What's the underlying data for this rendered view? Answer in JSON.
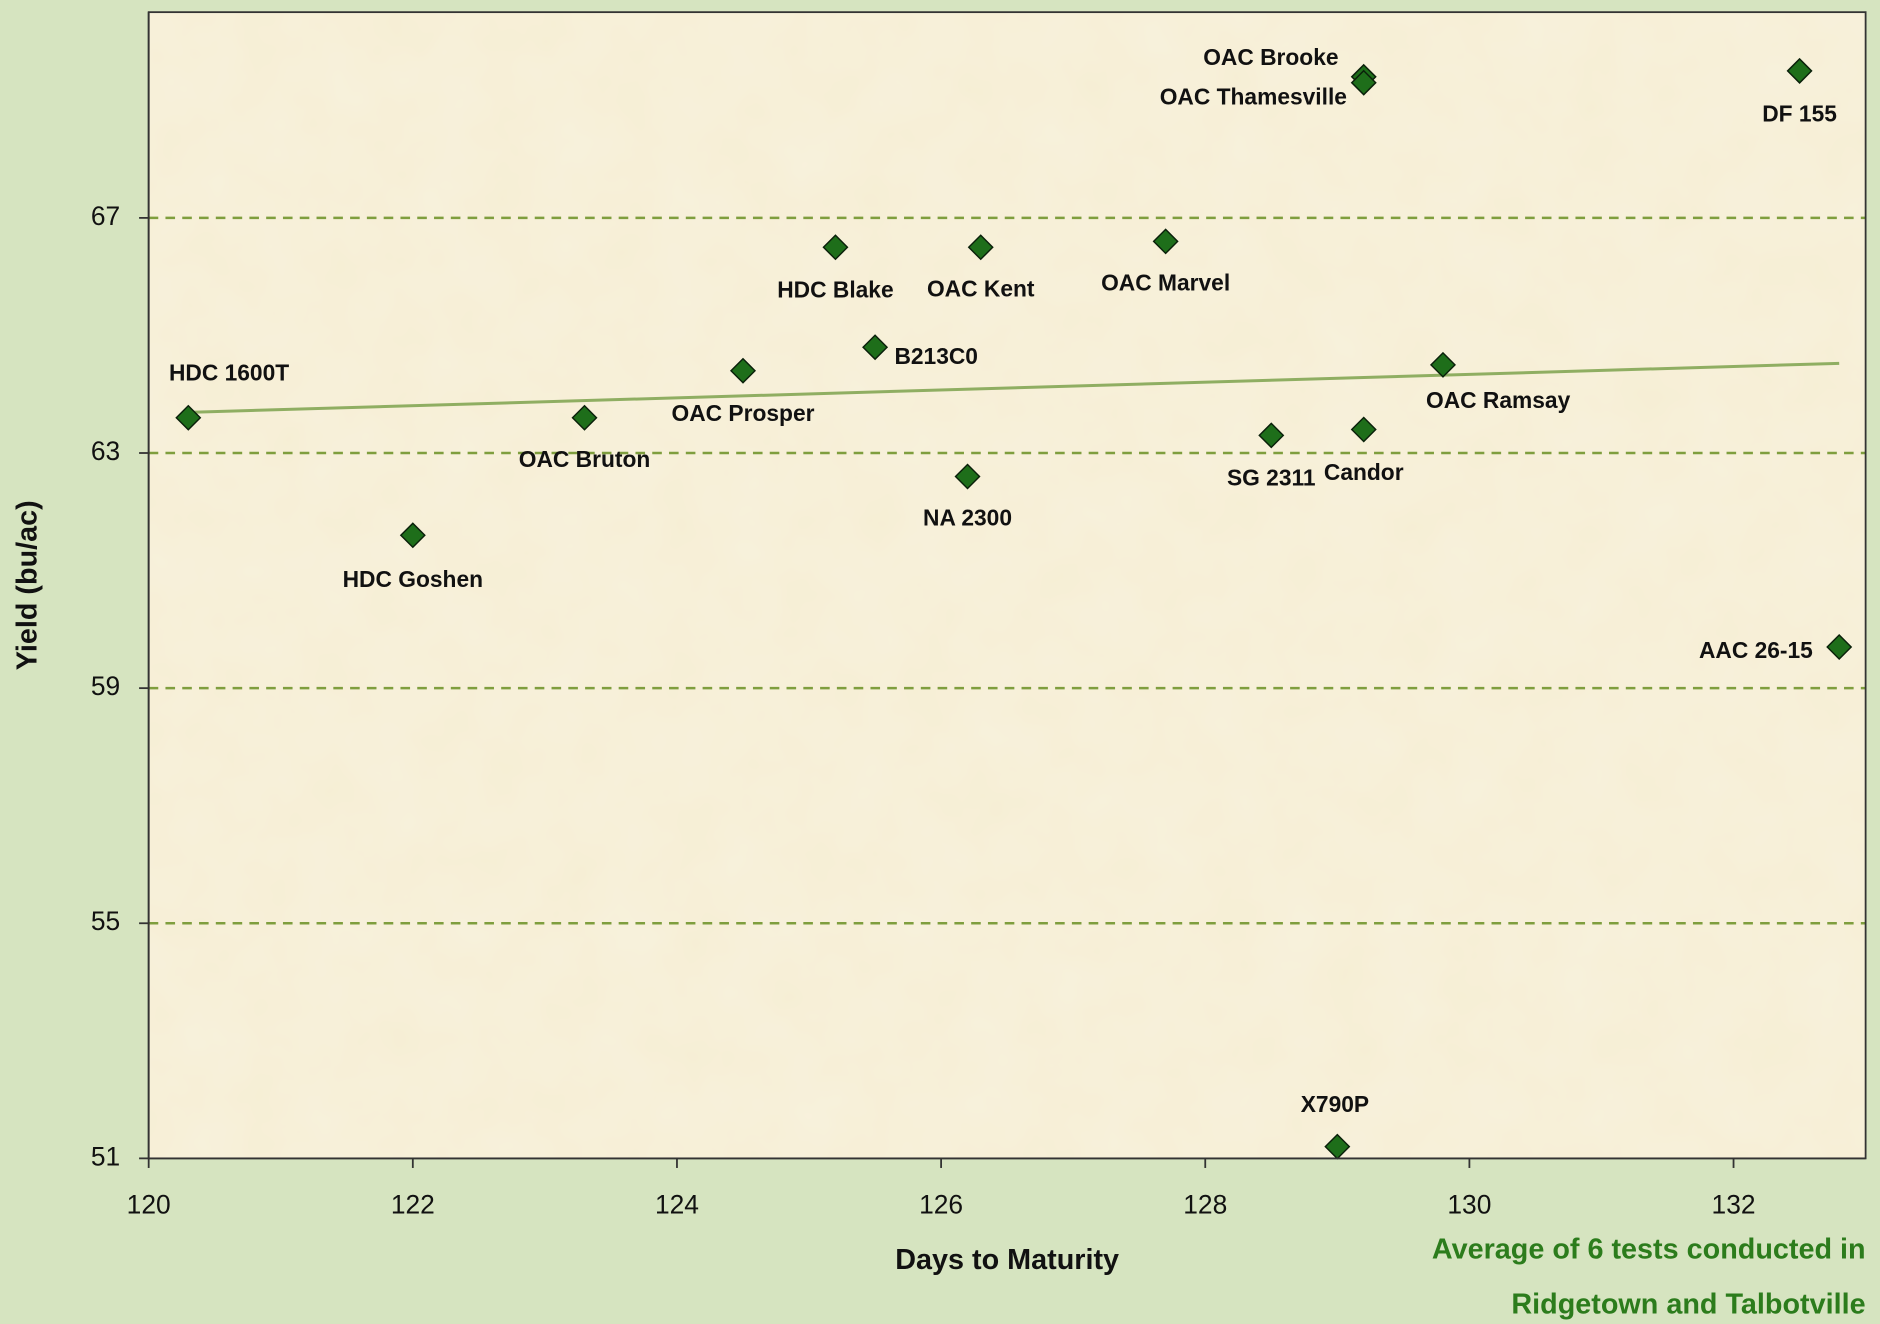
{
  "chart_data": {
    "type": "scatter",
    "x_label": "Days to Maturity",
    "y_label": "Yield (bu/ac)",
    "note": [
      "Average of 6 tests conducted in",
      "Ridgetown and Talbotville"
    ],
    "labels": [
      "HDC 1600T",
      "HDC Goshen",
      "OAC Bruton",
      "OAC Prosper",
      "HDC Blake",
      "B213C0",
      "OAC Kent",
      "NA 2300",
      "OAC Marvel",
      "SG 2311",
      "Candor",
      "OAC Ramsay",
      "OAC Brooke",
      "OAC Thamesville",
      "DF 155",
      "AAC 26-15",
      "X790P"
    ],
    "x": [
      120.3,
      122.0,
      123.3,
      124.5,
      125.2,
      125.5,
      126.3,
      126.2,
      127.7,
      128.5,
      129.2,
      129.8,
      129.2,
      129.2,
      132.5,
      132.8,
      129.0
    ],
    "values": [
      63.6,
      61.6,
      63.6,
      64.4,
      66.5,
      64.8,
      66.5,
      62.6,
      66.6,
      63.3,
      63.4,
      64.5,
      69.4,
      69.3,
      69.5,
      59.7,
      51.2
    ],
    "color": "#1e6e1a",
    "trendline": true,
    "trendline_color": "#8fae62",
    "xlim": [
      120,
      133
    ],
    "xticks": [
      120,
      122,
      124,
      126,
      128,
      130,
      132
    ],
    "ylim": [
      51,
      70.5
    ],
    "yticks": [
      51,
      55,
      59,
      63,
      67
    ],
    "grid": true
  }
}
